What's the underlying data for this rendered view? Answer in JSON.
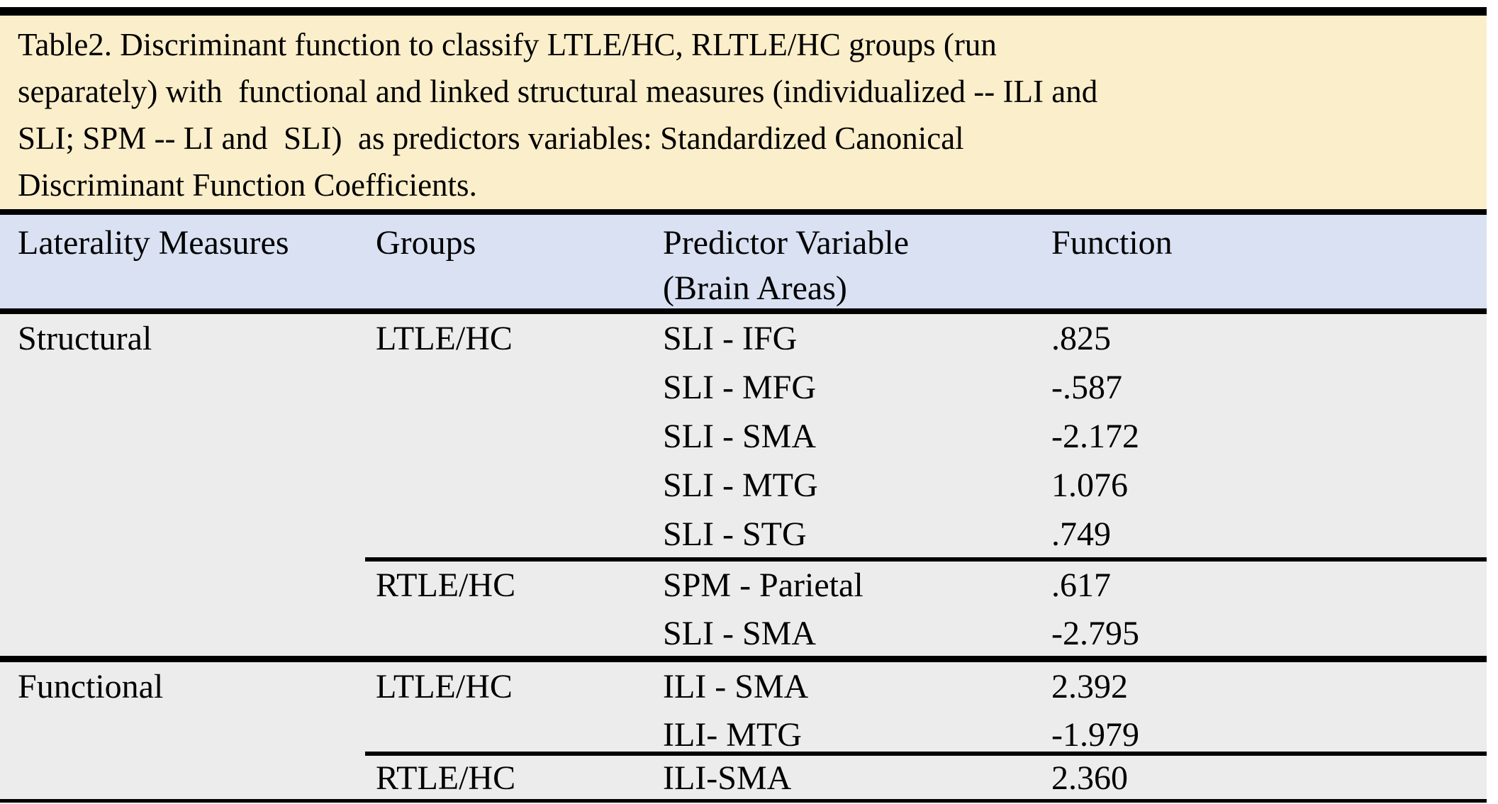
{
  "caption_lines": [
    "Table2. Discriminant function to classify LTLE/HC, RLTLE/HC groups (run",
    "separately) with  functional and linked structural measures (individualized -- ILI and",
    "SLI; SPM -- LI and  SLI)  as predictors variables: Standardized Canonical",
    "Discriminant Function Coefficients."
  ],
  "header": {
    "laterality_measures": "Laterality Measures",
    "groups": "Groups",
    "predictor_variable": "Predictor Variable",
    "predictor_variable_sub": "(Brain Areas)",
    "function": "Function"
  },
  "sections": [
    {
      "measure": "Structural",
      "groups": [
        {
          "name": "LTLE/HC",
          "rows": [
            {
              "predictor": "SLI - IFG",
              "value": ".825"
            },
            {
              "predictor": "SLI - MFG",
              "value": "-.587"
            },
            {
              "predictor": "SLI - SMA",
              "value": "-2.172"
            },
            {
              "predictor": "SLI - MTG",
              "value": "1.076"
            },
            {
              "predictor": "SLI - STG",
              "value": ".749"
            }
          ]
        },
        {
          "name": "RTLE/HC",
          "rows": [
            {
              "predictor": "SPM - Parietal",
              "value": ".617"
            },
            {
              "predictor": "SLI - SMA",
              "value": "-2.795"
            }
          ]
        }
      ]
    },
    {
      "measure": "Functional",
      "groups": [
        {
          "name": "LTLE/HC",
          "rows": [
            {
              "predictor": "ILI - SMA",
              "value": "2.392"
            },
            {
              "predictor": "ILI- MTG",
              "value": "-1.979"
            }
          ]
        },
        {
          "name": "RTLE/HC",
          "rows": [
            {
              "predictor": "ILI-SMA",
              "value": "2.360"
            }
          ]
        }
      ]
    }
  ],
  "colors": {
    "caption_bg": "#FBEECA",
    "header_bg": "#D9E1F2",
    "body_bg": "#ECECEC",
    "rule": "#000000"
  }
}
